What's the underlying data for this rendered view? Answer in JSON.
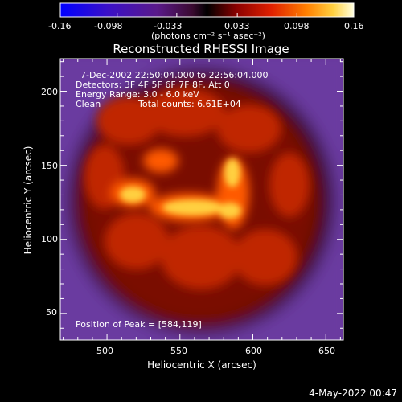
{
  "colorbar": {
    "tick_labels": [
      "-0.16",
      "-0.098",
      "-0.033",
      "0.033",
      "0.098",
      "0.16"
    ],
    "units": "(photons cm⁻² s⁻¹ asec⁻²)",
    "range": [
      -0.16,
      0.16
    ]
  },
  "title": "Reconstructed RHESSI Image",
  "info": {
    "time": "7-Dec-2002 22:50:04.000 to 22:56:04.000",
    "detectors": "Detectors: 3F 4F 5F 6F 7F 8F, Att 0",
    "energy": "Energy Range: 3.0 - 6.0 keV",
    "algorithm": "Clean",
    "counts": "Total counts: 6.61E+04",
    "peak": "Position of Peak = [584,119]"
  },
  "axes": {
    "xlabel": "Heliocentric X (arcsec)",
    "ylabel": "Heliocentric Y (arcsec)",
    "xticks": [
      "500",
      "550",
      "600",
      "650"
    ],
    "yticks": [
      "50",
      "100",
      "150",
      "200"
    ]
  },
  "timestamp": "4-May-2022 00:47",
  "chart_data": {
    "type": "heatmap",
    "title": "Reconstructed RHESSI Image",
    "xlabel": "Heliocentric X (arcsec)",
    "ylabel": "Heliocentric Y (arcsec)",
    "xlim": [
      468,
      662
    ],
    "ylim": [
      32,
      222
    ],
    "xticks": [
      500,
      550,
      600,
      650
    ],
    "yticks": [
      50,
      100,
      150,
      200
    ],
    "peak": [
      584,
      119
    ],
    "colormap_range": [
      -0.16,
      0.16
    ]
  }
}
